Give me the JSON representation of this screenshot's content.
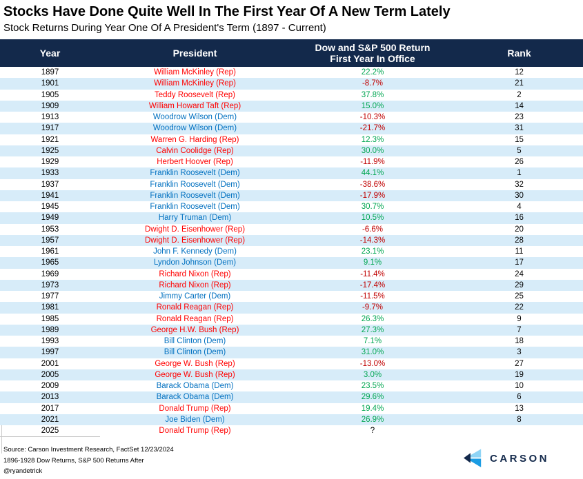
{
  "colors": {
    "header_bg": "#13294B",
    "stripe": "#D7ECF9",
    "rep": "#FF0000",
    "dem": "#0070C0",
    "positive": "#00A651",
    "negative": "#C00000",
    "neutral": "#000000",
    "logo_navy": "#13294B",
    "logo_light_blue": "#8FD4F5",
    "logo_mid_blue": "#1B9CE3"
  },
  "header": {
    "col_year": "Year",
    "col_president": "President",
    "col_return_line1": "Dow and S&P 500 Return",
    "col_return_line2": "First Year In Office",
    "col_rank": "Rank"
  },
  "chart_data": {
    "type": "table",
    "title": "Stocks Have Done Quite Well In The First Year Of A New Term Lately",
    "subtitle": "Stock Returns During Year One Of A President's Term (1897 - Current)",
    "columns": [
      "Year",
      "President",
      "Dow and S&P 500 Return First Year In Office",
      "Rank"
    ],
    "rows": [
      {
        "year": "1897",
        "president": "William McKinley (Rep)",
        "party": "Rep",
        "return": "22.2%",
        "rank": "12"
      },
      {
        "year": "1901",
        "president": "William McKinley (Rep)",
        "party": "Rep",
        "return": "-8.7%",
        "rank": "21"
      },
      {
        "year": "1905",
        "president": "Teddy Roosevelt (Rep)",
        "party": "Rep",
        "return": "37.8%",
        "rank": "2"
      },
      {
        "year": "1909",
        "president": "William Howard Taft (Rep)",
        "party": "Rep",
        "return": "15.0%",
        "rank": "14"
      },
      {
        "year": "1913",
        "president": "Woodrow Wilson (Dem)",
        "party": "Dem",
        "return": "-10.3%",
        "rank": "23"
      },
      {
        "year": "1917",
        "president": "Woodrow Wilson (Dem)",
        "party": "Dem",
        "return": "-21.7%",
        "rank": "31"
      },
      {
        "year": "1921",
        "president": "Warren G. Harding (Rep)",
        "party": "Rep",
        "return": "12.3%",
        "rank": "15"
      },
      {
        "year": "1925",
        "president": "Calvin Coolidge (Rep)",
        "party": "Rep",
        "return": "30.0%",
        "rank": "5"
      },
      {
        "year": "1929",
        "president": "Herbert Hoover (Rep)",
        "party": "Rep",
        "return": "-11.9%",
        "rank": "26"
      },
      {
        "year": "1933",
        "president": "Franklin Roosevelt (Dem)",
        "party": "Dem",
        "return": "44.1%",
        "rank": "1"
      },
      {
        "year": "1937",
        "president": "Franklin Roosevelt (Dem)",
        "party": "Dem",
        "return": "-38.6%",
        "rank": "32"
      },
      {
        "year": "1941",
        "president": "Franklin Roosevelt (Dem)",
        "party": "Dem",
        "return": "-17.9%",
        "rank": "30"
      },
      {
        "year": "1945",
        "president": "Franklin Roosevelt (Dem)",
        "party": "Dem",
        "return": "30.7%",
        "rank": "4"
      },
      {
        "year": "1949",
        "president": "Harry Truman (Dem)",
        "party": "Dem",
        "return": "10.5%",
        "rank": "16"
      },
      {
        "year": "1953",
        "president": "Dwight D. Eisenhower (Rep)",
        "party": "Rep",
        "return": "-6.6%",
        "rank": "20"
      },
      {
        "year": "1957",
        "president": "Dwight D. Eisenhower (Rep)",
        "party": "Rep",
        "return": "-14.3%",
        "rank": "28"
      },
      {
        "year": "1961",
        "president": "John F. Kennedy (Dem)",
        "party": "Dem",
        "return": "23.1%",
        "rank": "11"
      },
      {
        "year": "1965",
        "president": "Lyndon Johnson (Dem)",
        "party": "Dem",
        "return": "9.1%",
        "rank": "17"
      },
      {
        "year": "1969",
        "president": "Richard Nixon (Rep)",
        "party": "Rep",
        "return": "-11.4%",
        "rank": "24"
      },
      {
        "year": "1973",
        "president": "Richard Nixon (Rep)",
        "party": "Rep",
        "return": "-17.4%",
        "rank": "29"
      },
      {
        "year": "1977",
        "president": "Jimmy Carter (Dem)",
        "party": "Dem",
        "return": "-11.5%",
        "rank": "25"
      },
      {
        "year": "1981",
        "president": "Ronald Reagan (Rep)",
        "party": "Rep",
        "return": "-9.7%",
        "rank": "22"
      },
      {
        "year": "1985",
        "president": "Ronald Reagan (Rep)",
        "party": "Rep",
        "return": "26.3%",
        "rank": "9"
      },
      {
        "year": "1989",
        "president": "George H.W. Bush (Rep)",
        "party": "Rep",
        "return": "27.3%",
        "rank": "7"
      },
      {
        "year": "1993",
        "president": "Bill Clinton (Dem)",
        "party": "Dem",
        "return": "7.1%",
        "rank": "18"
      },
      {
        "year": "1997",
        "president": "Bill Clinton (Dem)",
        "party": "Dem",
        "return": "31.0%",
        "rank": "3"
      },
      {
        "year": "2001",
        "president": "George W. Bush (Rep)",
        "party": "Rep",
        "return": "-13.0%",
        "rank": "27"
      },
      {
        "year": "2005",
        "president": "George W. Bush (Rep)",
        "party": "Rep",
        "return": "3.0%",
        "rank": "19"
      },
      {
        "year": "2009",
        "president": "Barack Obama (Dem)",
        "party": "Dem",
        "return": "23.5%",
        "rank": "10"
      },
      {
        "year": "2013",
        "president": "Barack Obama (Dem)",
        "party": "Dem",
        "return": "29.6%",
        "rank": "6"
      },
      {
        "year": "2017",
        "president": "Donald Trump (Rep)",
        "party": "Rep",
        "return": "19.4%",
        "rank": "13"
      },
      {
        "year": "2021",
        "president": "Joe Biden (Dem)",
        "party": "Dem",
        "return": "26.9%",
        "rank": "8"
      },
      {
        "year": "2025",
        "president": "Donald Trump (Rep)",
        "party": "Rep",
        "return": "?",
        "rank": ""
      }
    ]
  },
  "footer": {
    "source_line": "Source: Carson Investment Research, FactSet 12/23/2024",
    "returns_line": "1896-1928 Dow Returns, S&P 500 Returns After",
    "handle": "@ryandetrick"
  },
  "logo": {
    "text": "CARSON"
  }
}
